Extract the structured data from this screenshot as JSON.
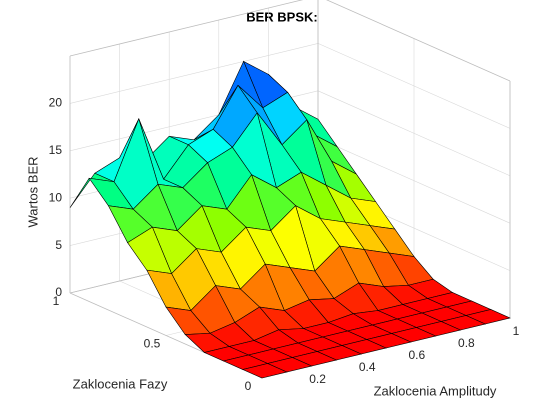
{
  "chart_data": {
    "type": "surface",
    "title": "BER BPSK:",
    "xlabel": "Zaklocenia Amplitudy",
    "ylabel": "Zaklocenia Fazy",
    "zlabel": "Wartos BER",
    "x": [
      0,
      0.1,
      0.2,
      0.3,
      0.4,
      0.5,
      0.6,
      0.7,
      0.8,
      0.9,
      1
    ],
    "y": [
      0,
      0.1,
      0.2,
      0.3,
      0.4,
      0.5,
      0.6,
      0.7,
      0.8,
      0.9,
      1
    ],
    "z": [
      [
        0,
        0,
        0,
        0,
        0,
        0,
        0,
        0,
        0,
        0,
        0
      ],
      [
        0,
        0,
        0,
        0,
        0,
        0,
        0,
        0,
        0,
        0,
        0
      ],
      [
        0,
        0,
        0,
        0,
        0,
        0,
        0,
        0,
        0,
        0,
        0
      ],
      [
        0,
        0,
        0,
        0.5,
        0,
        0,
        0.3,
        0,
        0,
        0,
        0
      ],
      [
        1,
        0.5,
        1,
        2,
        1,
        1.5,
        1,
        2,
        1,
        0.5,
        0.5
      ],
      [
        3,
        2,
        4,
        3,
        5,
        4,
        3,
        5,
        4,
        3,
        2
      ],
      [
        6,
        5,
        7,
        6,
        8,
        7,
        9,
        7,
        6,
        5,
        4
      ],
      [
        8,
        9,
        8,
        10,
        9,
        12,
        10,
        11,
        9,
        7,
        6
      ],
      [
        11,
        10,
        12,
        11,
        13,
        14,
        17,
        13,
        15,
        10,
        8
      ],
      [
        13,
        12,
        18,
        11,
        14,
        15,
        19,
        16,
        17,
        12,
        10
      ],
      [
        9,
        12,
        13,
        12,
        14,
        13,
        15,
        20,
        18,
        14,
        12
      ]
    ],
    "xlim": [
      0,
      1
    ],
    "ylim": [
      0,
      1
    ],
    "zlim": [
      0,
      25
    ],
    "xticks": [
      0.2,
      0.4,
      0.6,
      0.8,
      1
    ],
    "yticks": [
      0,
      0.5,
      1
    ],
    "zticks": [
      0,
      5,
      10,
      15,
      20
    ],
    "clim": [
      0,
      20
    ],
    "colormap": [
      "#ff0000",
      "#ff8000",
      "#ffff00",
      "#80ff00",
      "#00ff80",
      "#00ffff",
      "#0080ff",
      "#0000ff"
    ],
    "grid": true
  }
}
